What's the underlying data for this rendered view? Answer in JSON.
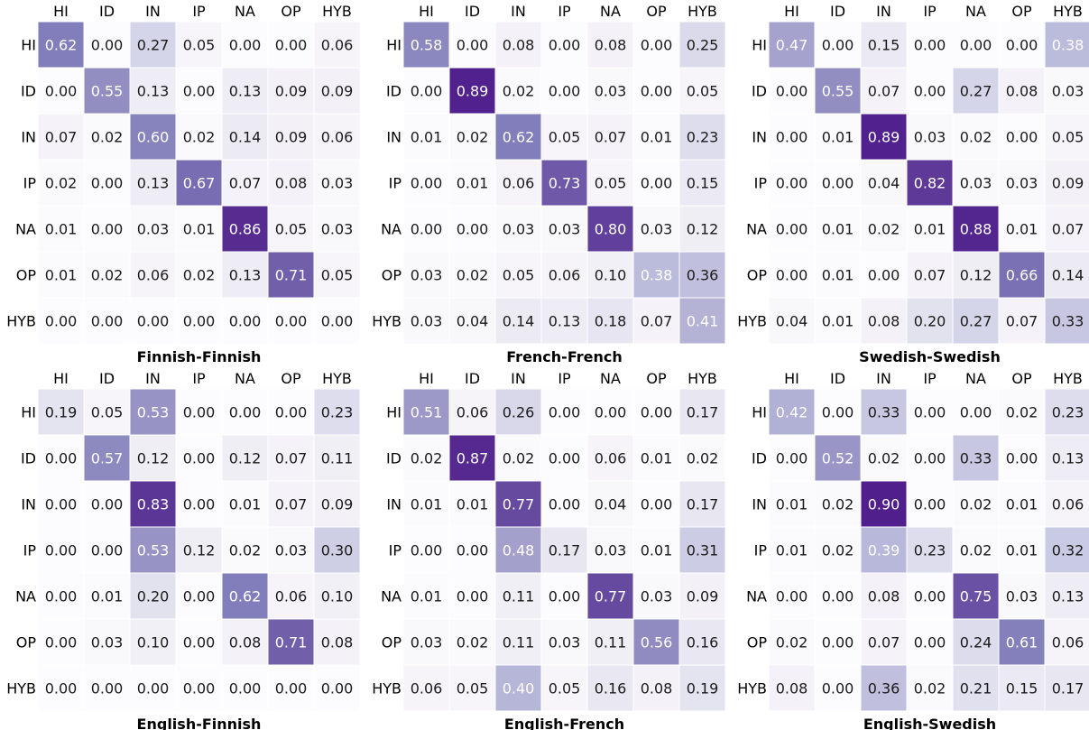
{
  "chart_data": [
    {
      "type": "heatmap",
      "title": "Finnish-Finnish",
      "x_labels": [
        "HI",
        "ID",
        "IN",
        "IP",
        "NA",
        "OP",
        "HYB"
      ],
      "y_labels": [
        "HI",
        "ID",
        "IN",
        "IP",
        "NA",
        "OP",
        "HYB"
      ],
      "values": [
        [
          0.62,
          0.0,
          0.27,
          0.05,
          0.0,
          0.0,
          0.06
        ],
        [
          0.0,
          0.55,
          0.13,
          0.0,
          0.13,
          0.09,
          0.09
        ],
        [
          0.07,
          0.02,
          0.6,
          0.02,
          0.14,
          0.09,
          0.06
        ],
        [
          0.02,
          0.0,
          0.13,
          0.67,
          0.07,
          0.08,
          0.03
        ],
        [
          0.01,
          0.0,
          0.03,
          0.01,
          0.86,
          0.05,
          0.03
        ],
        [
          0.01,
          0.02,
          0.06,
          0.02,
          0.13,
          0.71,
          0.05
        ],
        [
          0.0,
          0.0,
          0.0,
          0.0,
          0.0,
          0.0,
          0.0
        ]
      ],
      "colormap": "Purples"
    },
    {
      "type": "heatmap",
      "title": "French-French",
      "x_labels": [
        "HI",
        "ID",
        "IN",
        "IP",
        "NA",
        "OP",
        "HYB"
      ],
      "y_labels": [
        "HI",
        "ID",
        "IN",
        "IP",
        "NA",
        "OP",
        "HYB"
      ],
      "values": [
        [
          0.58,
          0.0,
          0.08,
          0.0,
          0.08,
          0.0,
          0.25
        ],
        [
          0.0,
          0.89,
          0.02,
          0.0,
          0.03,
          0.0,
          0.05
        ],
        [
          0.01,
          0.02,
          0.62,
          0.05,
          0.07,
          0.01,
          0.23
        ],
        [
          0.0,
          0.01,
          0.06,
          0.73,
          0.05,
          0.0,
          0.15
        ],
        [
          0.0,
          0.0,
          0.03,
          0.03,
          0.8,
          0.03,
          0.12
        ],
        [
          0.03,
          0.02,
          0.05,
          0.06,
          0.1,
          0.38,
          0.36
        ],
        [
          0.03,
          0.04,
          0.14,
          0.13,
          0.18,
          0.07,
          0.41
        ]
      ],
      "colormap": "Purples"
    },
    {
      "type": "heatmap",
      "title": "Swedish-Swedish",
      "x_labels": [
        "HI",
        "ID",
        "IN",
        "IP",
        "NA",
        "OP",
        "HYB"
      ],
      "y_labels": [
        "HI",
        "ID",
        "IN",
        "IP",
        "NA",
        "OP",
        "HYB"
      ],
      "values": [
        [
          0.47,
          0.0,
          0.15,
          0.0,
          0.0,
          0.0,
          0.38
        ],
        [
          0.0,
          0.55,
          0.07,
          0.0,
          0.27,
          0.08,
          0.03
        ],
        [
          0.0,
          0.01,
          0.89,
          0.03,
          0.02,
          0.0,
          0.05
        ],
        [
          0.0,
          0.0,
          0.04,
          0.82,
          0.03,
          0.03,
          0.09
        ],
        [
          0.0,
          0.01,
          0.02,
          0.01,
          0.88,
          0.01,
          0.07
        ],
        [
          0.0,
          0.01,
          0.0,
          0.07,
          0.12,
          0.66,
          0.14
        ],
        [
          0.04,
          0.01,
          0.08,
          0.2,
          0.27,
          0.07,
          0.33
        ]
      ],
      "colormap": "Purples"
    },
    {
      "type": "heatmap",
      "title": "English-Finnish",
      "x_labels": [
        "HI",
        "ID",
        "IN",
        "IP",
        "NA",
        "OP",
        "HYB"
      ],
      "y_labels": [
        "HI",
        "ID",
        "IN",
        "IP",
        "NA",
        "OP",
        "HYB"
      ],
      "values": [
        [
          0.19,
          0.05,
          0.53,
          0.0,
          0.0,
          0.0,
          0.23
        ],
        [
          0.0,
          0.57,
          0.12,
          0.0,
          0.12,
          0.07,
          0.11
        ],
        [
          0.0,
          0.0,
          0.83,
          0.0,
          0.01,
          0.07,
          0.09
        ],
        [
          0.0,
          0.0,
          0.53,
          0.12,
          0.02,
          0.03,
          0.3
        ],
        [
          0.0,
          0.01,
          0.2,
          0.0,
          0.62,
          0.06,
          0.1
        ],
        [
          0.0,
          0.03,
          0.1,
          0.0,
          0.08,
          0.71,
          0.08
        ],
        [
          0.0,
          0.0,
          0.0,
          0.0,
          0.0,
          0.0,
          0.0
        ]
      ],
      "colormap": "Purples"
    },
    {
      "type": "heatmap",
      "title": "English-French",
      "x_labels": [
        "HI",
        "ID",
        "IN",
        "IP",
        "NA",
        "OP",
        "HYB"
      ],
      "y_labels": [
        "HI",
        "ID",
        "IN",
        "IP",
        "NA",
        "OP",
        "HYB"
      ],
      "values": [
        [
          0.51,
          0.06,
          0.26,
          0.0,
          0.0,
          0.0,
          0.17
        ],
        [
          0.02,
          0.87,
          0.02,
          0.0,
          0.06,
          0.01,
          0.02
        ],
        [
          0.01,
          0.01,
          0.77,
          0.0,
          0.04,
          0.0,
          0.17
        ],
        [
          0.0,
          0.0,
          0.48,
          0.17,
          0.03,
          0.01,
          0.31
        ],
        [
          0.01,
          0.0,
          0.11,
          0.0,
          0.77,
          0.03,
          0.09
        ],
        [
          0.03,
          0.02,
          0.11,
          0.03,
          0.11,
          0.56,
          0.16
        ],
        [
          0.06,
          0.05,
          0.4,
          0.05,
          0.16,
          0.08,
          0.19
        ]
      ],
      "colormap": "Purples"
    },
    {
      "type": "heatmap",
      "title": "English-Swedish",
      "x_labels": [
        "HI",
        "ID",
        "IN",
        "IP",
        "NA",
        "OP",
        "HYB"
      ],
      "y_labels": [
        "HI",
        "ID",
        "IN",
        "IP",
        "NA",
        "OP",
        "HYB"
      ],
      "values": [
        [
          0.42,
          0.0,
          0.33,
          0.0,
          0.0,
          0.02,
          0.23
        ],
        [
          0.0,
          0.52,
          0.02,
          0.0,
          0.33,
          0.0,
          0.13
        ],
        [
          0.01,
          0.02,
          0.9,
          0.0,
          0.02,
          0.01,
          0.06
        ],
        [
          0.01,
          0.02,
          0.39,
          0.23,
          0.02,
          0.01,
          0.32
        ],
        [
          0.0,
          0.0,
          0.08,
          0.0,
          0.75,
          0.03,
          0.13
        ],
        [
          0.02,
          0.0,
          0.07,
          0.0,
          0.24,
          0.61,
          0.06
        ],
        [
          0.08,
          0.0,
          0.36,
          0.02,
          0.21,
          0.15,
          0.17
        ]
      ],
      "colormap": "Purples"
    }
  ]
}
